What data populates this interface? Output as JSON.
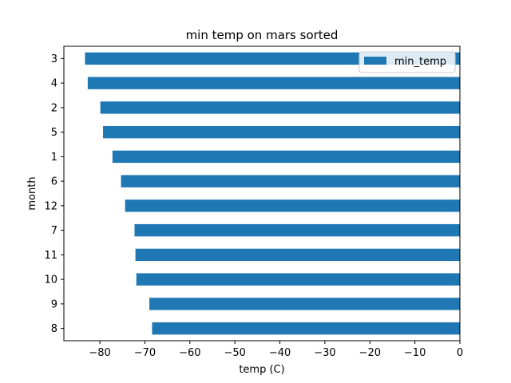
{
  "chart_data": {
    "type": "bar",
    "orientation": "horizontal",
    "title": "min temp on mars sorted",
    "xlabel": "temp (C)",
    "ylabel": "month",
    "categories": [
      "3",
      "4",
      "2",
      "5",
      "1",
      "6",
      "12",
      "7",
      "11",
      "10",
      "9",
      "8"
    ],
    "series": [
      {
        "name": "min_temp",
        "color": "#1f77b4",
        "values": [
          -83.3,
          -82.7,
          -79.9,
          -79.3,
          -77.2,
          -75.3,
          -74.4,
          -72.3,
          -72.1,
          -71.9,
          -69.0,
          -68.4
        ]
      }
    ],
    "xlim": [
      -88,
      0
    ],
    "xticks": [
      -80,
      -70,
      -60,
      -50,
      -40,
      -30,
      -20,
      -10,
      0
    ],
    "xtick_labels": [
      "−80",
      "−70",
      "−60",
      "−50",
      "−40",
      "−30",
      "−20",
      "−10",
      "0"
    ],
    "grid": false,
    "legend_position": "upper-right"
  }
}
